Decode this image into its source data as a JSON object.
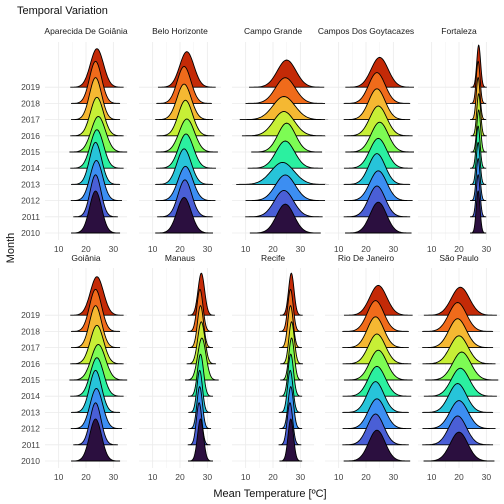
{
  "chart_data": {
    "type": "ridgeline",
    "title": "Temporal Variation",
    "xlabel": "Mean Temperature [ºC]",
    "ylabel": "Month",
    "x_ticks": [
      10,
      20,
      30
    ],
    "xlim": [
      5,
      35
    ],
    "y_categories": [
      "2010",
      "2011",
      "2012",
      "2013",
      "2014",
      "2015",
      "2016",
      "2017",
      "2018",
      "2019"
    ],
    "grid": true,
    "layout": "facet 2 rows x 5 columns",
    "series_colors": [
      "#2b0f3f",
      "#4a5fd6",
      "#3c8ef2",
      "#27c4d9",
      "#2bf0a0",
      "#7dfc54",
      "#c7ef36",
      "#f5b832",
      "#f06b1b",
      "#c42a07",
      "#7a0403"
    ],
    "panels": [
      {
        "city": "Aparecida De Goiânia",
        "distributions": [
          {
            "year": "2010",
            "mean": 23.5,
            "sd": 2.2
          },
          {
            "year": "2011",
            "mean": 23.5,
            "sd": 2.0
          },
          {
            "year": "2012",
            "mean": 23.8,
            "sd": 2.3
          },
          {
            "year": "2013",
            "mean": 23.5,
            "sd": 2.2
          },
          {
            "year": "2014",
            "mean": 24.0,
            "sd": 2.4
          },
          {
            "year": "2015",
            "mean": 24.5,
            "sd": 2.6
          },
          {
            "year": "2016",
            "mean": 24.0,
            "sd": 2.4
          },
          {
            "year": "2017",
            "mean": 23.5,
            "sd": 2.2
          },
          {
            "year": "2018",
            "mean": 23.5,
            "sd": 2.2
          },
          {
            "year": "2019",
            "mean": 24.0,
            "sd": 2.4
          }
        ]
      },
      {
        "city": "Belo Horizonte",
        "distributions": [
          {
            "year": "2010",
            "mean": 21.5,
            "sd": 2.6
          },
          {
            "year": "2011",
            "mean": 21.8,
            "sd": 2.5
          },
          {
            "year": "2012",
            "mean": 22.0,
            "sd": 2.7
          },
          {
            "year": "2013",
            "mean": 21.5,
            "sd": 2.6
          },
          {
            "year": "2014",
            "mean": 22.2,
            "sd": 2.7
          },
          {
            "year": "2015",
            "mean": 22.5,
            "sd": 2.8
          },
          {
            "year": "2016",
            "mean": 22.0,
            "sd": 2.6
          },
          {
            "year": "2017",
            "mean": 21.5,
            "sd": 2.6
          },
          {
            "year": "2018",
            "mean": 21.5,
            "sd": 2.5
          },
          {
            "year": "2019",
            "mean": 22.5,
            "sd": 2.6
          }
        ]
      },
      {
        "city": "Campo Grande",
        "distributions": [
          {
            "year": "2010",
            "mean": 24.5,
            "sd": 3.2
          },
          {
            "year": "2011",
            "mean": 24.0,
            "sd": 3.5
          },
          {
            "year": "2012",
            "mean": 24.5,
            "sd": 3.6
          },
          {
            "year": "2013",
            "mean": 23.5,
            "sd": 4.2
          },
          {
            "year": "2014",
            "mean": 24.5,
            "sd": 3.4
          },
          {
            "year": "2015",
            "mean": 25.0,
            "sd": 3.2
          },
          {
            "year": "2016",
            "mean": 24.0,
            "sd": 3.8
          },
          {
            "year": "2017",
            "mean": 24.0,
            "sd": 4.0
          },
          {
            "year": "2018",
            "mean": 24.5,
            "sd": 3.6
          },
          {
            "year": "2019",
            "mean": 25.0,
            "sd": 3.4
          }
        ]
      },
      {
        "city": "Campos Dos Goytacazes",
        "distributions": [
          {
            "year": "2010",
            "mean": 24.5,
            "sd": 3.0
          },
          {
            "year": "2011",
            "mean": 24.0,
            "sd": 3.0
          },
          {
            "year": "2012",
            "mean": 24.5,
            "sd": 3.1
          },
          {
            "year": "2013",
            "mean": 24.0,
            "sd": 3.0
          },
          {
            "year": "2014",
            "mean": 24.5,
            "sd": 3.1
          },
          {
            "year": "2015",
            "mean": 25.0,
            "sd": 3.1
          },
          {
            "year": "2016",
            "mean": 24.5,
            "sd": 3.1
          },
          {
            "year": "2017",
            "mean": 24.0,
            "sd": 3.0
          },
          {
            "year": "2018",
            "mean": 24.0,
            "sd": 3.0
          },
          {
            "year": "2019",
            "mean": 25.0,
            "sd": 3.1
          }
        ]
      },
      {
        "city": "Fortaleza",
        "distributions": [
          {
            "year": "2010",
            "mean": 27.0,
            "sd": 0.7
          },
          {
            "year": "2011",
            "mean": 27.0,
            "sd": 0.7
          },
          {
            "year": "2012",
            "mean": 27.0,
            "sd": 0.7
          },
          {
            "year": "2013",
            "mean": 27.0,
            "sd": 0.7
          },
          {
            "year": "2014",
            "mean": 27.0,
            "sd": 0.7
          },
          {
            "year": "2015",
            "mean": 27.2,
            "sd": 0.7
          },
          {
            "year": "2016",
            "mean": 27.2,
            "sd": 0.7
          },
          {
            "year": "2017",
            "mean": 27.0,
            "sd": 0.7
          },
          {
            "year": "2018",
            "mean": 27.0,
            "sd": 0.7
          },
          {
            "year": "2019",
            "mean": 27.2,
            "sd": 0.7
          }
        ]
      },
      {
        "city": "Goiânia",
        "distributions": [
          {
            "year": "2010",
            "mean": 23.5,
            "sd": 2.2
          },
          {
            "year": "2011",
            "mean": 23.5,
            "sd": 2.0
          },
          {
            "year": "2012",
            "mean": 23.8,
            "sd": 2.3
          },
          {
            "year": "2013",
            "mean": 23.5,
            "sd": 2.2
          },
          {
            "year": "2014",
            "mean": 24.0,
            "sd": 2.4
          },
          {
            "year": "2015",
            "mean": 24.5,
            "sd": 2.6
          },
          {
            "year": "2016",
            "mean": 24.0,
            "sd": 2.4
          },
          {
            "year": "2017",
            "mean": 23.5,
            "sd": 2.2
          },
          {
            "year": "2018",
            "mean": 23.5,
            "sd": 2.2
          },
          {
            "year": "2019",
            "mean": 24.0,
            "sd": 2.4
          }
        ]
      },
      {
        "city": "Manaus",
        "distributions": [
          {
            "year": "2010",
            "mean": 27.5,
            "sd": 1.1
          },
          {
            "year": "2011",
            "mean": 27.0,
            "sd": 1.0
          },
          {
            "year": "2012",
            "mean": 27.2,
            "sd": 1.0
          },
          {
            "year": "2013",
            "mean": 27.2,
            "sd": 1.0
          },
          {
            "year": "2014",
            "mean": 27.5,
            "sd": 1.1
          },
          {
            "year": "2015",
            "mean": 28.0,
            "sd": 1.5
          },
          {
            "year": "2016",
            "mean": 27.8,
            "sd": 1.3
          },
          {
            "year": "2017",
            "mean": 27.5,
            "sd": 1.1
          },
          {
            "year": "2018",
            "mean": 27.3,
            "sd": 1.1
          },
          {
            "year": "2019",
            "mean": 27.8,
            "sd": 1.2
          }
        ]
      },
      {
        "city": "Recife",
        "distributions": [
          {
            "year": "2010",
            "mean": 26.5,
            "sd": 1.0
          },
          {
            "year": "2011",
            "mean": 26.2,
            "sd": 1.0
          },
          {
            "year": "2012",
            "mean": 26.5,
            "sd": 1.0
          },
          {
            "year": "2013",
            "mean": 26.3,
            "sd": 1.0
          },
          {
            "year": "2014",
            "mean": 26.5,
            "sd": 1.0
          },
          {
            "year": "2015",
            "mean": 26.8,
            "sd": 1.0
          },
          {
            "year": "2016",
            "mean": 26.8,
            "sd": 1.0
          },
          {
            "year": "2017",
            "mean": 26.4,
            "sd": 1.0
          },
          {
            "year": "2018",
            "mean": 26.4,
            "sd": 1.0
          },
          {
            "year": "2019",
            "mean": 26.7,
            "sd": 1.0
          }
        ]
      },
      {
        "city": "Rio De Janeiro",
        "distributions": [
          {
            "year": "2010",
            "mean": 24.0,
            "sd": 3.0
          },
          {
            "year": "2011",
            "mean": 23.5,
            "sd": 3.0
          },
          {
            "year": "2012",
            "mean": 24.0,
            "sd": 3.1
          },
          {
            "year": "2013",
            "mean": 23.5,
            "sd": 3.0
          },
          {
            "year": "2014",
            "mean": 24.0,
            "sd": 3.1
          },
          {
            "year": "2015",
            "mean": 24.5,
            "sd": 3.1
          },
          {
            "year": "2016",
            "mean": 24.0,
            "sd": 3.1
          },
          {
            "year": "2017",
            "mean": 23.5,
            "sd": 3.0
          },
          {
            "year": "2018",
            "mean": 23.5,
            "sd": 3.0
          },
          {
            "year": "2019",
            "mean": 24.5,
            "sd": 3.1
          }
        ]
      },
      {
        "city": "São Paulo",
        "distributions": [
          {
            "year": "2010",
            "mean": 20.0,
            "sd": 3.2
          },
          {
            "year": "2011",
            "mean": 19.5,
            "sd": 3.2
          },
          {
            "year": "2012",
            "mean": 20.0,
            "sd": 3.3
          },
          {
            "year": "2013",
            "mean": 19.5,
            "sd": 3.2
          },
          {
            "year": "2014",
            "mean": 20.5,
            "sd": 3.3
          },
          {
            "year": "2015",
            "mean": 21.0,
            "sd": 3.3
          },
          {
            "year": "2016",
            "mean": 20.0,
            "sd": 3.3
          },
          {
            "year": "2017",
            "mean": 19.5,
            "sd": 3.2
          },
          {
            "year": "2018",
            "mean": 19.5,
            "sd": 3.2
          },
          {
            "year": "2019",
            "mean": 20.5,
            "sd": 3.3
          }
        ]
      }
    ]
  }
}
